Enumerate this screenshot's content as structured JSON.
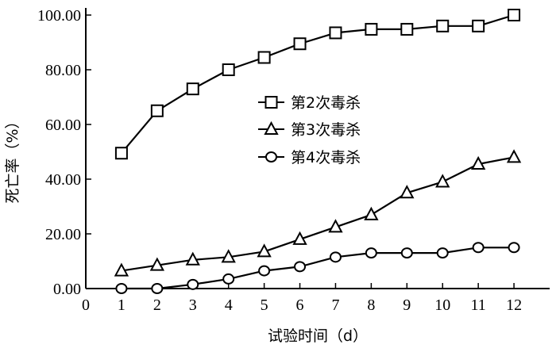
{
  "chart_data": {
    "type": "line",
    "xlabel": "试验时间（d）",
    "ylabel": "死亡率（%）",
    "xlim": [
      0,
      13
    ],
    "ylim": [
      0,
      100
    ],
    "x_ticks": [
      "0",
      "1",
      "2",
      "3",
      "4",
      "5",
      "6",
      "7",
      "8",
      "9",
      "10",
      "11",
      "12"
    ],
    "y_ticks": [
      "0.00",
      "20.00",
      "40.00",
      "60.00",
      "80.00",
      "100.00"
    ],
    "grid": false,
    "legend_position": "center",
    "x": [
      1,
      2,
      3,
      4,
      5,
      6,
      7,
      8,
      9,
      10,
      11,
      12
    ],
    "series": [
      {
        "name": "第2次毒杀",
        "marker": "square",
        "values": [
          49.5,
          65,
          73,
          80,
          84.5,
          89.5,
          93.5,
          94.8,
          94.8,
          96,
          96,
          100
        ]
      },
      {
        "name": "第3次毒杀",
        "marker": "triangle",
        "values": [
          6.5,
          8.5,
          10.5,
          11.5,
          13.5,
          18,
          22.5,
          27,
          35,
          39,
          45.5,
          48
        ]
      },
      {
        "name": "第4次毒杀",
        "marker": "circle",
        "values": [
          0,
          0,
          1.5,
          3.5,
          6.5,
          8,
          11.5,
          13,
          13,
          13,
          15,
          15
        ]
      }
    ]
  }
}
